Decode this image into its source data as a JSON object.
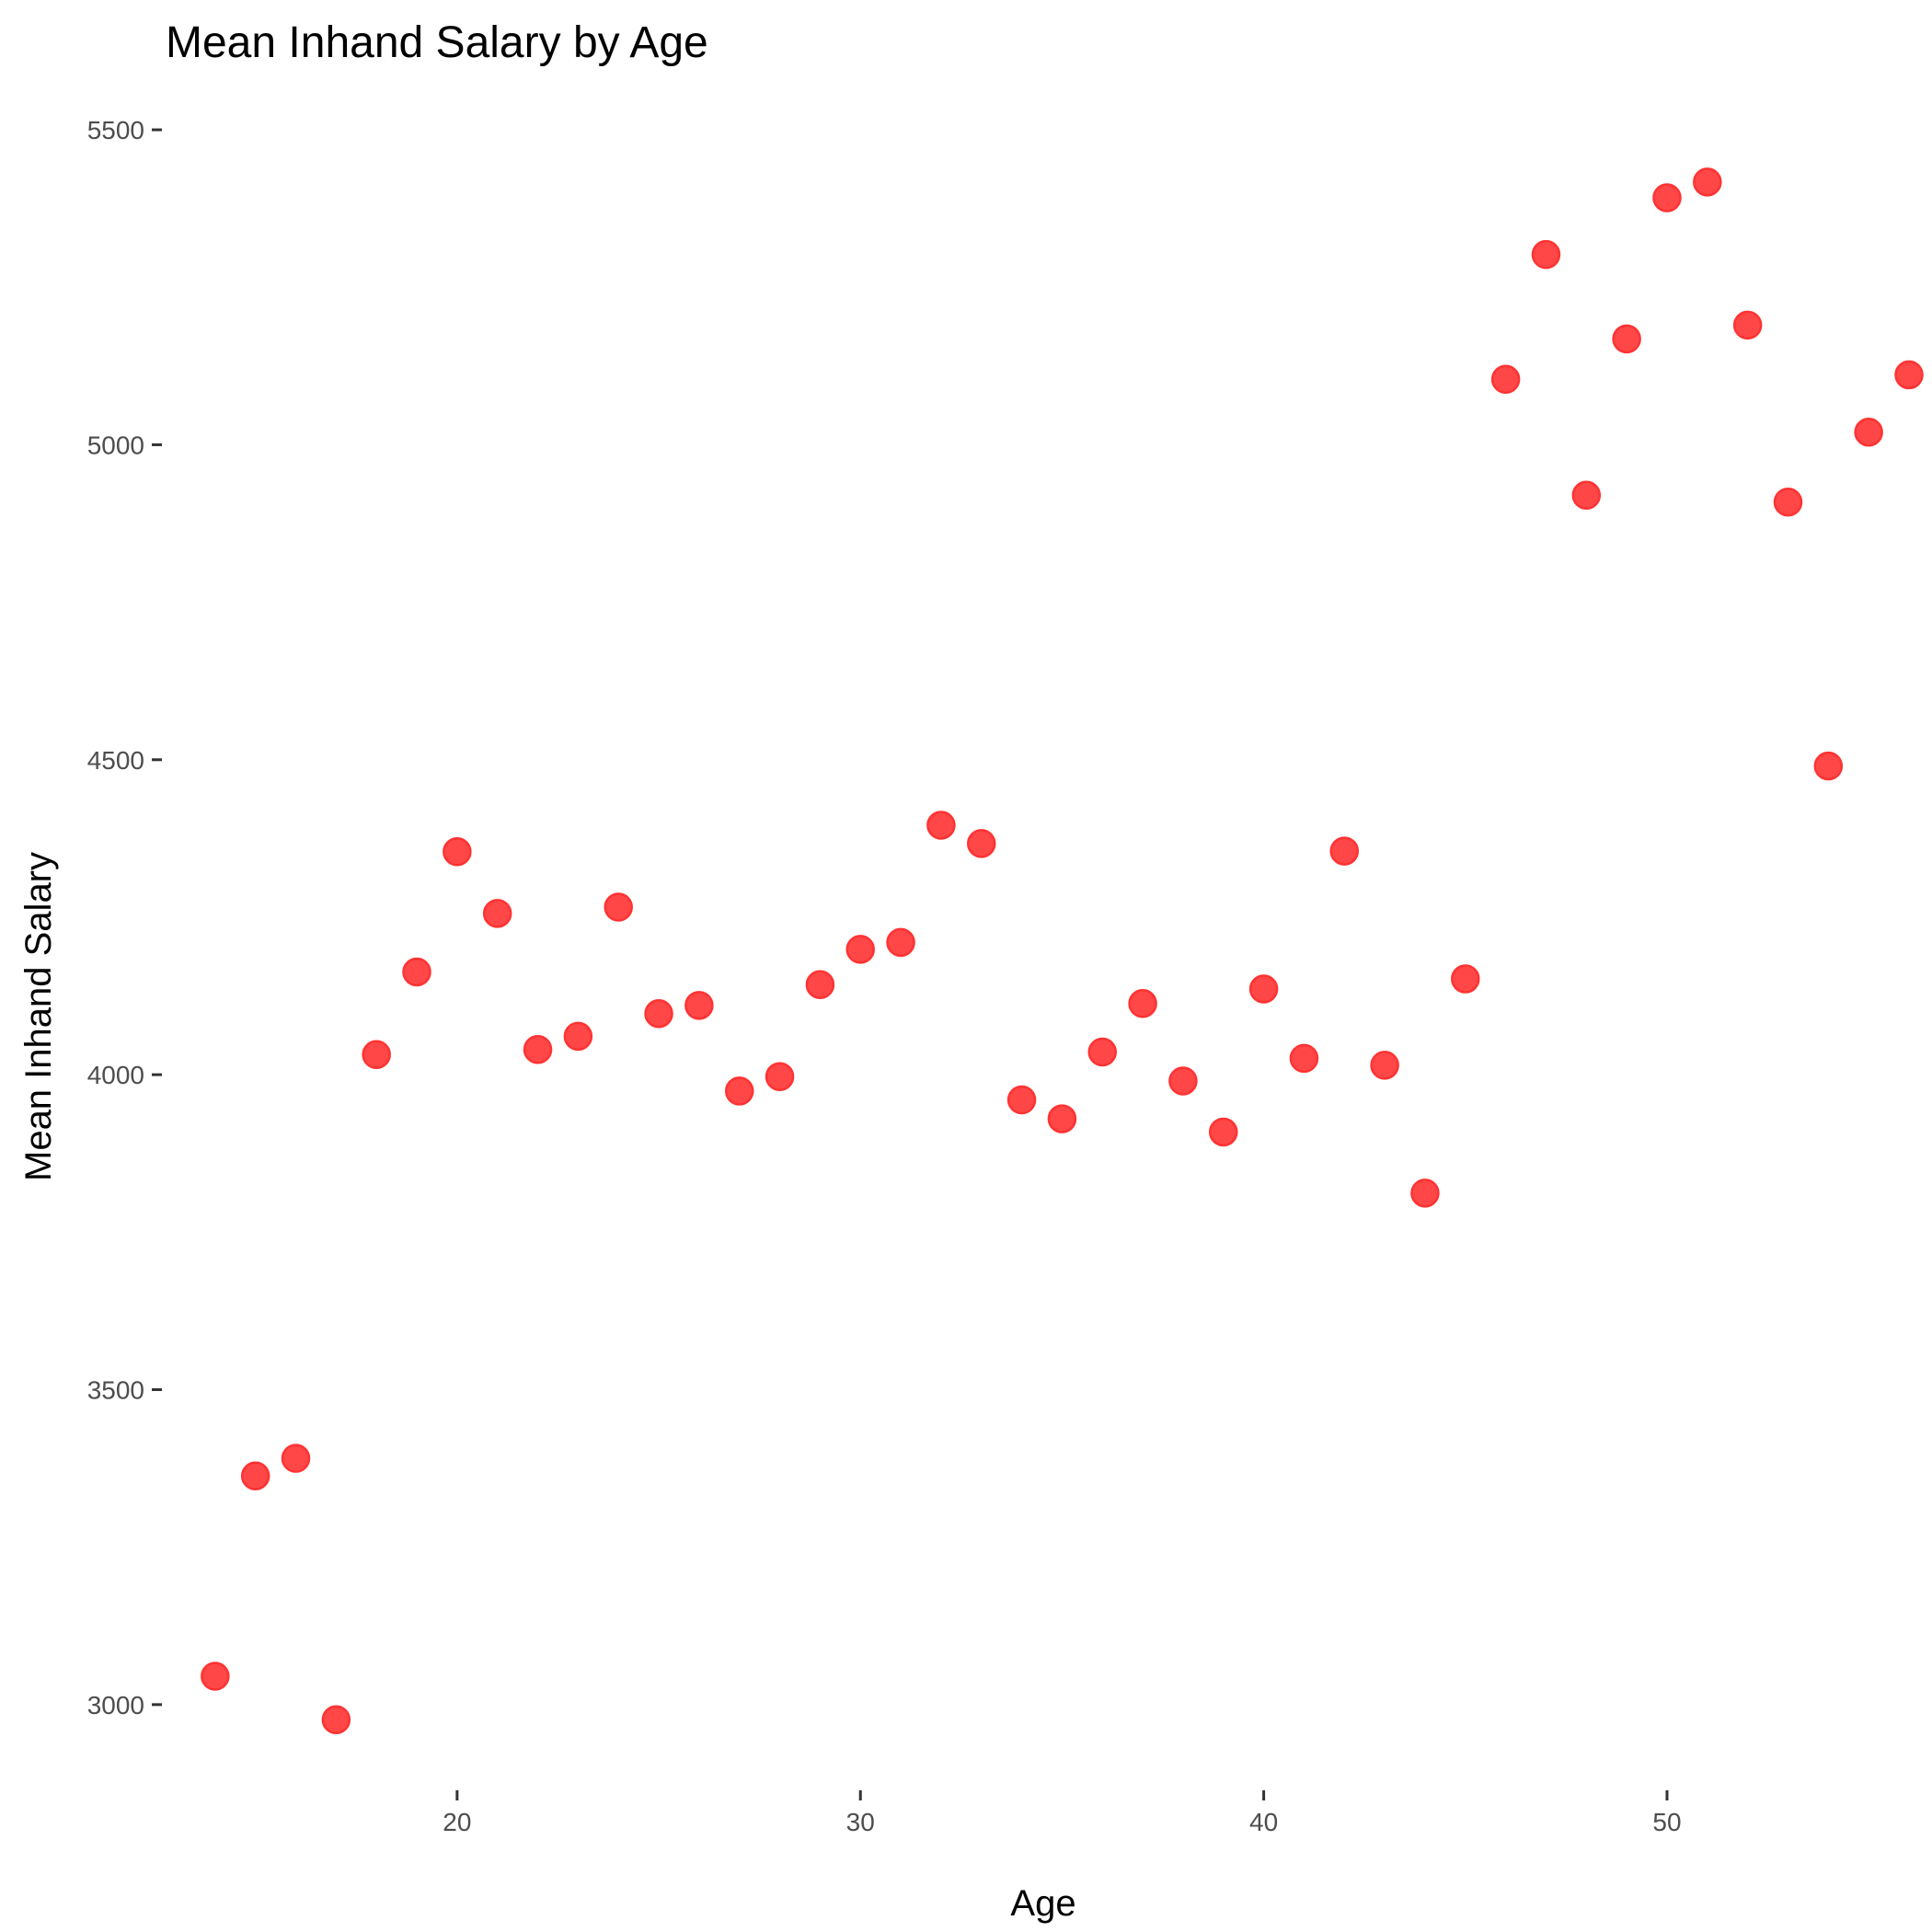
{
  "chart_data": {
    "type": "scatter",
    "title": "Mean Inhand Salary by Age",
    "xlabel": "Age",
    "ylabel": "Mean Inhand Salary",
    "xlim": [
      13,
      56
    ],
    "ylim": [
      2880,
      5560
    ],
    "xticks": [
      20,
      30,
      40,
      50
    ],
    "yticks": [
      3000,
      3500,
      4000,
      4500,
      5000,
      5500
    ],
    "grid": false,
    "point_color": "#ff0000",
    "points": [
      {
        "x": 14,
        "y": 3045
      },
      {
        "x": 15,
        "y": 3363
      },
      {
        "x": 16,
        "y": 3391
      },
      {
        "x": 17,
        "y": 2976
      },
      {
        "x": 18,
        "y": 4032
      },
      {
        "x": 19,
        "y": 4163
      },
      {
        "x": 20,
        "y": 4354
      },
      {
        "x": 21,
        "y": 4256
      },
      {
        "x": 22,
        "y": 4040
      },
      {
        "x": 23,
        "y": 4061
      },
      {
        "x": 24,
        "y": 4266
      },
      {
        "x": 25,
        "y": 4097
      },
      {
        "x": 26,
        "y": 4110
      },
      {
        "x": 27,
        "y": 3974
      },
      {
        "x": 28,
        "y": 3997
      },
      {
        "x": 29,
        "y": 4143
      },
      {
        "x": 30,
        "y": 4199
      },
      {
        "x": 31,
        "y": 4210
      },
      {
        "x": 32,
        "y": 4396
      },
      {
        "x": 33,
        "y": 4367
      },
      {
        "x": 34,
        "y": 3960
      },
      {
        "x": 35,
        "y": 3930
      },
      {
        "x": 36,
        "y": 4036
      },
      {
        "x": 37,
        "y": 4113
      },
      {
        "x": 38,
        "y": 3990
      },
      {
        "x": 39,
        "y": 3909
      },
      {
        "x": 40,
        "y": 4136
      },
      {
        "x": 41,
        "y": 4026
      },
      {
        "x": 42,
        "y": 4355
      },
      {
        "x": 43,
        "y": 4015
      },
      {
        "x": 44,
        "y": 3812
      },
      {
        "x": 45,
        "y": 4152
      },
      {
        "x": 46,
        "y": 5104
      },
      {
        "x": 47,
        "y": 5302
      },
      {
        "x": 48,
        "y": 4920
      },
      {
        "x": 49,
        "y": 5168
      },
      {
        "x": 50,
        "y": 5392
      },
      {
        "x": 51,
        "y": 5417
      },
      {
        "x": 52,
        "y": 5190
      },
      {
        "x": 53,
        "y": 4909
      },
      {
        "x": 54,
        "y": 4490
      },
      {
        "x": 55,
        "y": 5020
      },
      {
        "x": 56,
        "y": 5111
      }
    ]
  }
}
